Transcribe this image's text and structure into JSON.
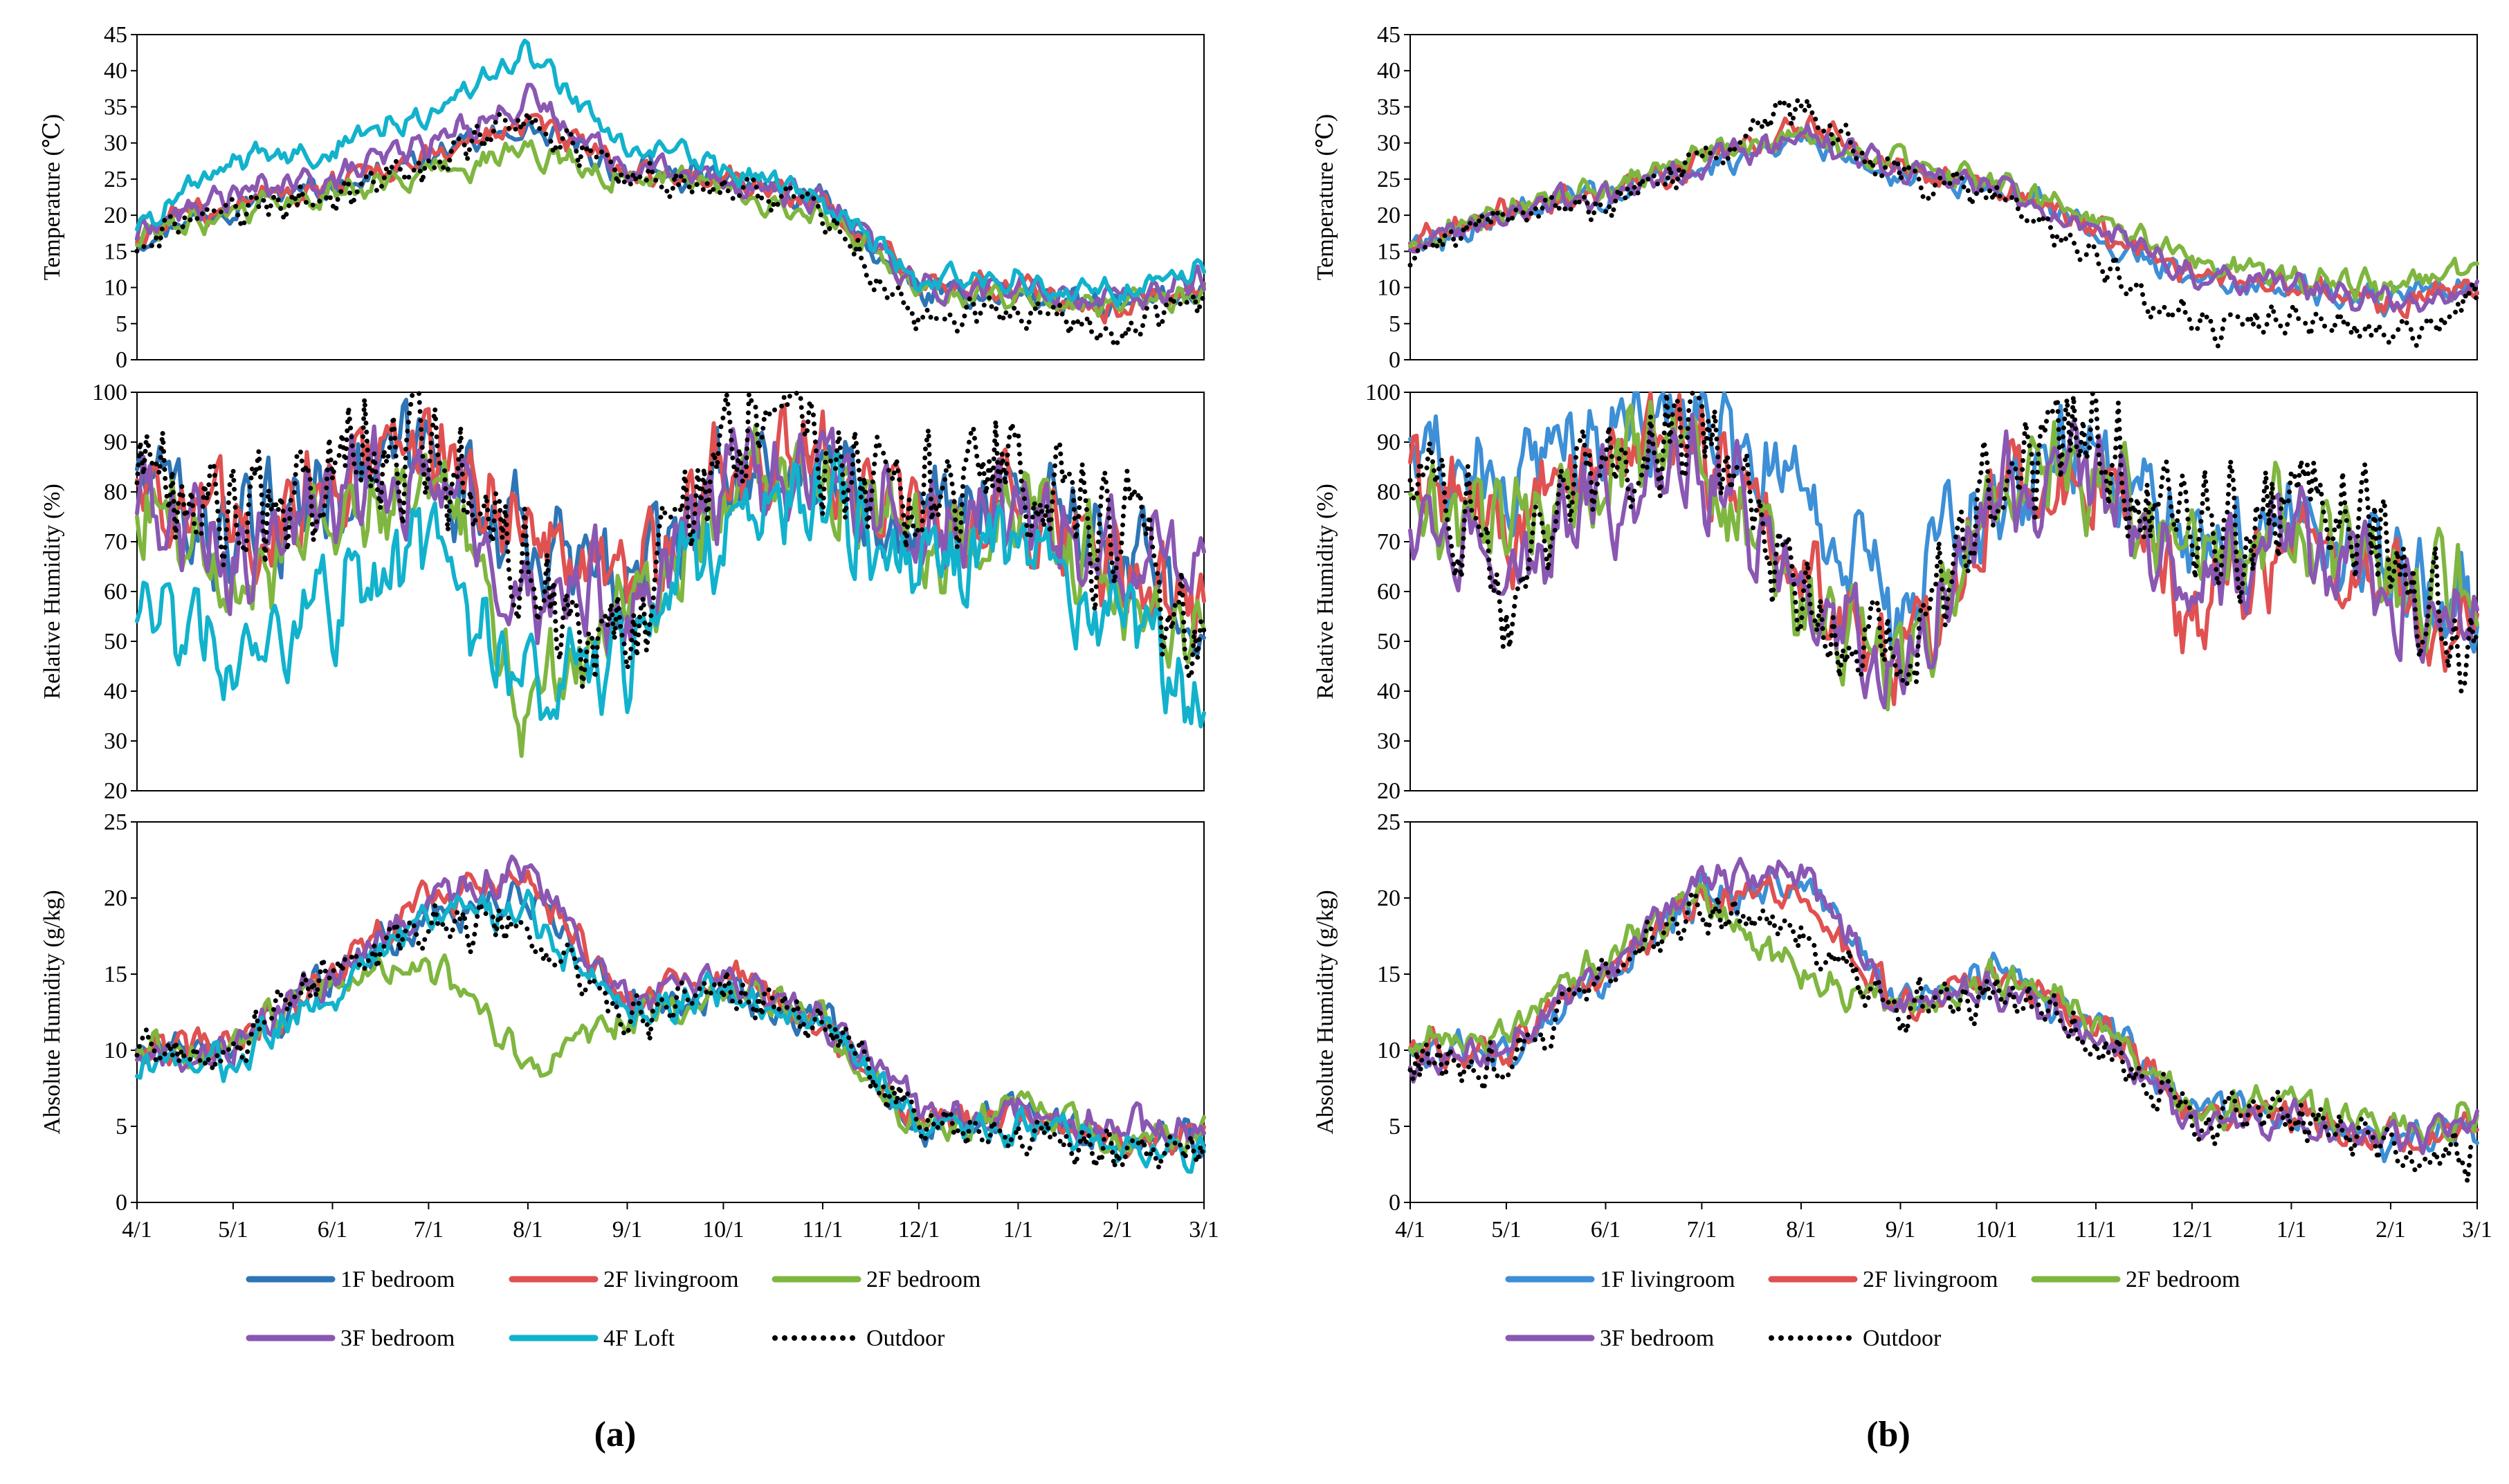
{
  "figure": {
    "panel_labels": [
      "(a)",
      "(b)"
    ]
  },
  "colors": {
    "1F bedroom": "#2e75b6",
    "1F livingroom": "#3d8fd6",
    "2F livingroom": "#e05151",
    "2F bedroom": "#7fb640",
    "3F bedroom": "#8a57b2",
    "4F Loft": "#12b2cc",
    "Outdoor": "#000000"
  },
  "panels": [
    {
      "label": "(a)",
      "legend": [
        "1F bedroom",
        "2F livingroom",
        "2F bedroom",
        "3F bedroom",
        "4F Loft",
        "Outdoor"
      ],
      "x_ticks": [
        "4/1",
        "5/1",
        "6/1",
        "7/1",
        "8/1",
        "9/1",
        "10/1",
        "11/1",
        "12/1",
        "1/1",
        "2/1",
        "3/1"
      ]
    },
    {
      "label": "(b)",
      "legend": [
        "1F livingroom",
        "2F livingroom",
        "2F bedroom",
        "3F bedroom",
        "Outdoor"
      ],
      "x_ticks": [
        "4/1",
        "5/1",
        "6/1",
        "7/1",
        "8/1",
        "9/1",
        "10/1",
        "11/1",
        "12/1",
        "1/1",
        "2/1",
        "3/1"
      ]
    }
  ],
  "chart_data": [
    {
      "type": "line",
      "panel": "(a)",
      "ylabel": "Temperature (℃)",
      "ylim": [
        0,
        45
      ],
      "yticks": [
        0,
        5,
        10,
        15,
        20,
        25,
        30,
        35,
        40,
        45
      ],
      "x": [
        "4/1",
        "5/1",
        "6/1",
        "7/1",
        "8/1",
        "9/1",
        "10/1",
        "11/1",
        "12/1",
        "1/1",
        "2/1",
        "3/1"
      ],
      "series": [
        {
          "name": "1F bedroom",
          "values": [
            17,
            22,
            24,
            28,
            32,
            26,
            25,
            22,
            9,
            9,
            7,
            10
          ]
        },
        {
          "name": "2F livingroom",
          "values": [
            17,
            22,
            24,
            28,
            33,
            26,
            25,
            22,
            10,
            10,
            7,
            10
          ]
        },
        {
          "name": "2F bedroom",
          "values": [
            17,
            21,
            23,
            26,
            29,
            25,
            24,
            21,
            9,
            9,
            7,
            9
          ]
        },
        {
          "name": "3F bedroom",
          "values": [
            18,
            23,
            25,
            30,
            36,
            27,
            25,
            22,
            10,
            10,
            8,
            11
          ]
        },
        {
          "name": "4F Loft",
          "values": [
            19,
            27,
            30,
            35,
            42,
            29,
            27,
            22,
            11,
            11,
            9,
            13
          ]
        },
        {
          "name": "Outdoor",
          "values": [
            16,
            21,
            23,
            27,
            33,
            25,
            24,
            21,
            5,
            7,
            4,
            8
          ]
        }
      ]
    },
    {
      "type": "line",
      "panel": "(a)",
      "ylabel": "Relative Humidity (%)",
      "ylim": [
        20,
        100
      ],
      "yticks": [
        20,
        30,
        40,
        50,
        60,
        70,
        80,
        90,
        100
      ],
      "x": [
        "4/1",
        "5/1",
        "6/1",
        "7/1",
        "8/1",
        "9/1",
        "10/1",
        "11/1",
        "12/1",
        "1/1",
        "2/1",
        "3/1"
      ],
      "series": [
        {
          "name": "1F bedroom",
          "values": [
            85,
            68,
            82,
            88,
            70,
            60,
            85,
            85,
            75,
            80,
            65,
            60
          ]
        },
        {
          "name": "2F livingroom",
          "values": [
            85,
            70,
            84,
            90,
            72,
            60,
            86,
            85,
            72,
            78,
            68,
            55
          ]
        },
        {
          "name": "2F bedroom",
          "values": [
            80,
            60,
            78,
            85,
            35,
            55,
            80,
            85,
            70,
            75,
            60,
            50
          ]
        },
        {
          "name": "3F bedroom",
          "values": [
            82,
            65,
            80,
            86,
            58,
            58,
            82,
            85,
            73,
            78,
            65,
            62
          ]
        },
        {
          "name": "4F Loft",
          "values": [
            60,
            45,
            60,
            70,
            40,
            45,
            72,
            80,
            65,
            70,
            55,
            35
          ]
        },
        {
          "name": "Outdoor",
          "values": [
            90,
            72,
            88,
            93,
            60,
            50,
            90,
            90,
            75,
            85,
            70,
            50
          ]
        }
      ]
    },
    {
      "type": "line",
      "panel": "(a)",
      "ylabel": "Absolute Humidity (g/kg)",
      "ylim": [
        0,
        25
      ],
      "yticks": [
        0,
        5,
        10,
        15,
        20,
        25
      ],
      "x": [
        "4/1",
        "5/1",
        "6/1",
        "7/1",
        "8/1",
        "9/1",
        "10/1",
        "11/1",
        "12/1",
        "1/1",
        "2/1",
        "3/1"
      ],
      "series": [
        {
          "name": "1F bedroom",
          "values": [
            10,
            10,
            15,
            19,
            20,
            13,
            14,
            12,
            5,
            6,
            4,
            4
          ]
        },
        {
          "name": "2F livingroom",
          "values": [
            10,
            10,
            15,
            20,
            21,
            13,
            15,
            12,
            5,
            6,
            4,
            4
          ]
        },
        {
          "name": "2F bedroom",
          "values": [
            10,
            10,
            15,
            16,
            9,
            12,
            14,
            12,
            5,
            6,
            4,
            4
          ]
        },
        {
          "name": "3F bedroom",
          "values": [
            10,
            10,
            15,
            20,
            22,
            13,
            15,
            12,
            6,
            6,
            5,
            5
          ]
        },
        {
          "name": "4F Loft",
          "values": [
            9,
            9,
            14,
            19,
            19,
            12,
            14,
            12,
            5,
            5,
            4,
            3
          ]
        },
        {
          "name": "Outdoor",
          "values": [
            10,
            10,
            15,
            19,
            18,
            12,
            14,
            12,
            5,
            5,
            4,
            3
          ]
        }
      ]
    },
    {
      "type": "line",
      "panel": "(b)",
      "ylabel": "Temperature (℃)",
      "ylim": [
        0,
        45
      ],
      "yticks": [
        0,
        5,
        10,
        15,
        20,
        25,
        30,
        35,
        40,
        45
      ],
      "x": [
        "4/1",
        "5/1",
        "6/1",
        "7/1",
        "8/1",
        "9/1",
        "10/1",
        "11/1",
        "12/1",
        "1/1",
        "2/1",
        "3/1"
      ],
      "series": [
        {
          "name": "1F livingroom",
          "values": [
            16,
            20,
            23,
            27,
            31,
            26,
            24,
            18,
            11,
            10,
            8,
            10
          ]
        },
        {
          "name": "2F livingroom",
          "values": [
            16,
            21,
            23,
            28,
            33,
            26,
            24,
            18,
            12,
            10,
            8,
            10
          ]
        },
        {
          "name": "2F bedroom",
          "values": [
            16,
            21,
            24,
            28,
            31,
            27,
            25,
            19,
            14,
            11,
            10,
            12
          ]
        },
        {
          "name": "3F bedroom",
          "values": [
            16,
            20,
            23,
            27,
            31,
            26,
            24,
            18,
            12,
            10,
            8,
            10
          ]
        },
        {
          "name": "Outdoor",
          "values": [
            15,
            20,
            22,
            28,
            35,
            25,
            23,
            15,
            4,
            6,
            3,
            8
          ]
        }
      ]
    },
    {
      "type": "line",
      "panel": "(b)",
      "ylabel": "Relative Humidity (%)",
      "ylim": [
        20,
        100
      ],
      "yticks": [
        20,
        30,
        40,
        50,
        60,
        70,
        80,
        90,
        100
      ],
      "x": [
        "4/1",
        "5/1",
        "6/1",
        "7/1",
        "8/1",
        "9/1",
        "10/1",
        "11/1",
        "12/1",
        "1/1",
        "2/1",
        "3/1"
      ],
      "series": [
        {
          "name": "1F livingroom",
          "values": [
            90,
            80,
            95,
            97,
            80,
            55,
            82,
            90,
            65,
            75,
            65,
            55
          ]
        },
        {
          "name": "2F livingroom",
          "values": [
            85,
            70,
            88,
            90,
            65,
            45,
            80,
            85,
            55,
            72,
            60,
            45
          ]
        },
        {
          "name": "2F bedroom",
          "values": [
            80,
            72,
            85,
            88,
            55,
            45,
            80,
            85,
            65,
            75,
            62,
            58
          ]
        },
        {
          "name": "3F bedroom",
          "values": [
            75,
            65,
            82,
            85,
            60,
            48,
            78,
            82,
            62,
            72,
            60,
            55
          ]
        },
        {
          "name": "Outdoor",
          "values": [
            85,
            60,
            90,
            92,
            60,
            45,
            85,
            90,
            65,
            80,
            70,
            40
          ]
        }
      ]
    },
    {
      "type": "line",
      "panel": "(b)",
      "ylabel": "Absolute Humidity (g/kg)",
      "ylim": [
        0,
        25
      ],
      "yticks": [
        0,
        5,
        10,
        15,
        20,
        25
      ],
      "x": [
        "4/1",
        "5/1",
        "6/1",
        "7/1",
        "8/1",
        "9/1",
        "10/1",
        "11/1",
        "12/1",
        "1/1",
        "2/1",
        "3/1"
      ],
      "series": [
        {
          "name": "1F livingroom",
          "values": [
            10,
            10,
            15,
            20,
            21,
            13,
            15,
            12,
            6,
            6,
            4,
            5
          ]
        },
        {
          "name": "2F livingroom",
          "values": [
            10,
            10,
            15,
            20,
            20,
            13,
            15,
            12,
            6,
            6,
            4,
            5
          ]
        },
        {
          "name": "2F bedroom",
          "values": [
            10,
            11,
            16,
            20,
            15,
            13,
            15,
            12,
            6,
            7,
            5,
            6
          ]
        },
        {
          "name": "3F bedroom",
          "values": [
            9,
            10,
            15,
            21,
            22,
            13,
            14,
            11,
            5,
            6,
            4,
            5
          ]
        },
        {
          "name": "Outdoor",
          "values": [
            9,
            9,
            15,
            19,
            18,
            12,
            14,
            11,
            5,
            6,
            3,
            3
          ]
        }
      ]
    }
  ]
}
